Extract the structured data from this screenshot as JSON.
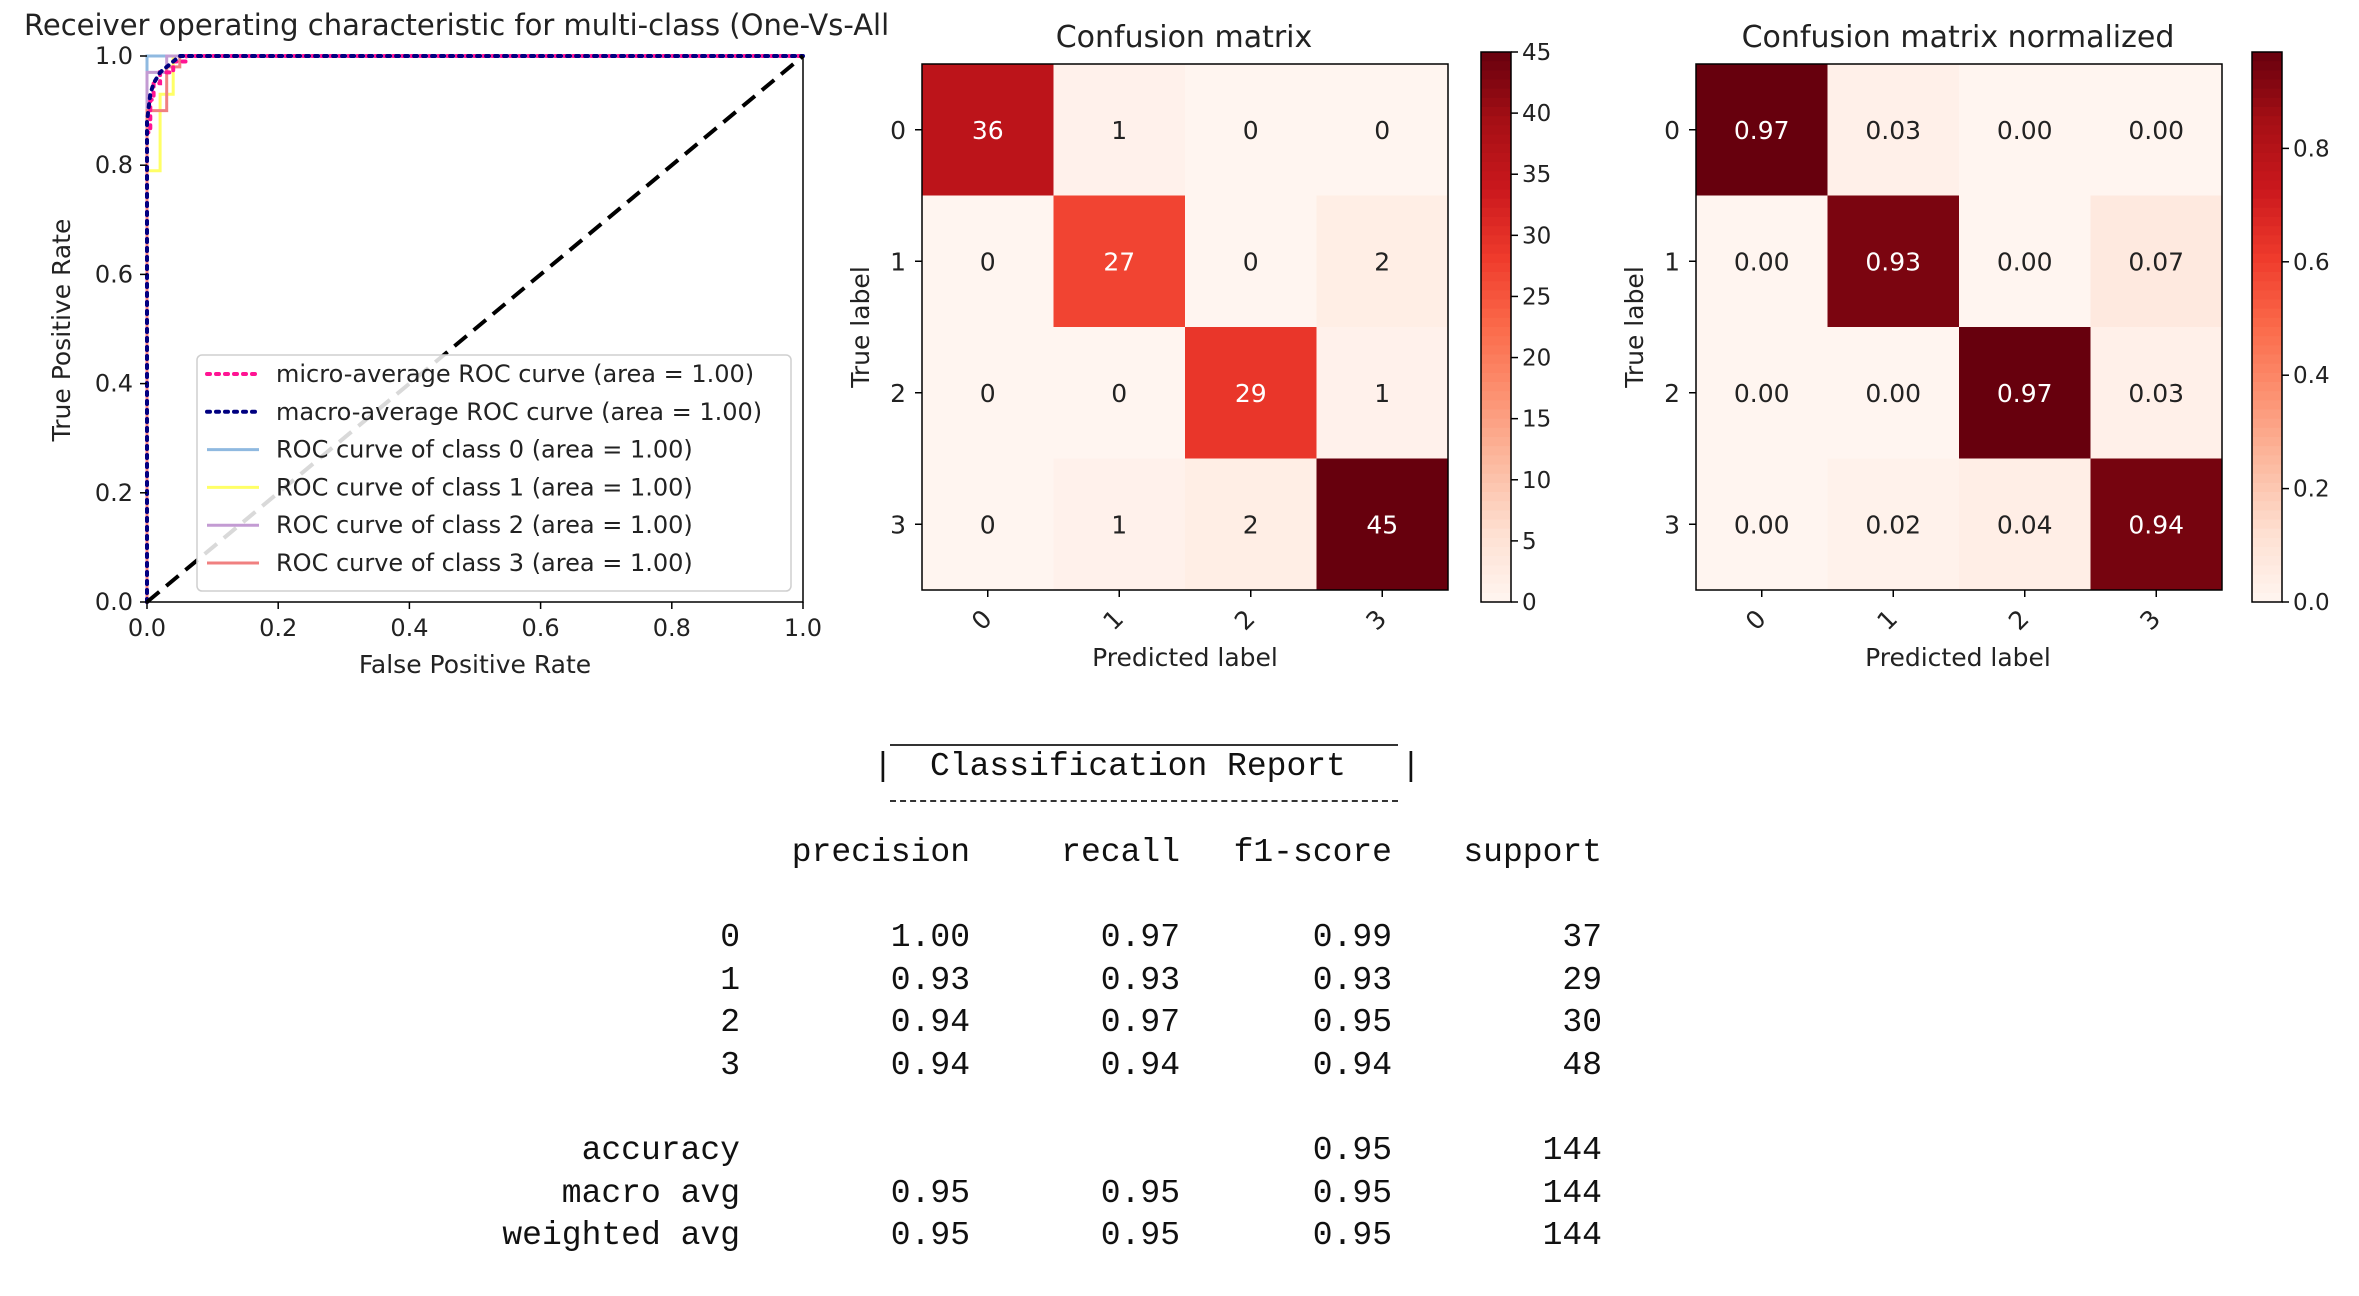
{
  "chart_data": [
    {
      "type": "line",
      "title": "Receiver operating characteristic for multi-class (One-Vs-All",
      "xlabel": "False Positive Rate",
      "ylabel": "True Positive Rate",
      "xlim": [
        0.0,
        1.0
      ],
      "ylim": [
        0.0,
        1.0
      ],
      "xticks": [
        "0.0",
        "0.2",
        "0.4",
        "0.6",
        "0.8",
        "1.0"
      ],
      "yticks": [
        "0.0",
        "0.2",
        "0.4",
        "0.6",
        "0.8",
        "1.0"
      ],
      "legend_position": "lower-right",
      "series": [
        {
          "name": "micro-average ROC curve (area = 1.00)",
          "color": "#ff1493",
          "style": "dotted",
          "x": [
            0.0,
            0.0,
            0.005,
            0.005,
            0.01,
            0.01,
            0.02,
            0.02,
            0.04,
            0.04,
            0.06,
            0.06,
            1.0
          ],
          "y": [
            0.0,
            0.86,
            0.86,
            0.92,
            0.92,
            0.95,
            0.95,
            0.97,
            0.97,
            0.99,
            0.99,
            1.0,
            1.0
          ]
        },
        {
          "name": "macro-average ROC curve (area = 1.00)",
          "color": "#000080",
          "style": "dotted",
          "x": [
            0.0,
            0.0,
            0.005,
            0.01,
            0.02,
            0.03,
            0.04,
            0.05,
            1.0
          ],
          "y": [
            0.0,
            0.88,
            0.93,
            0.95,
            0.97,
            0.98,
            0.99,
            1.0,
            1.0
          ]
        },
        {
          "name": "ROC curve of class 0 (area = 1.00)",
          "color": "#8fb9e0",
          "style": "solid",
          "x": [
            0.0,
            0.0,
            1.0
          ],
          "y": [
            0.0,
            1.0,
            1.0
          ]
        },
        {
          "name": "ROC curve of class 1 (area = 1.00)",
          "color": "#ffff66",
          "style": "solid",
          "x": [
            0.0,
            0.0,
            0.02,
            0.02,
            0.04,
            0.04,
            1.0
          ],
          "y": [
            0.0,
            0.79,
            0.79,
            0.93,
            0.93,
            1.0,
            1.0
          ]
        },
        {
          "name": "ROC curve of class 2 (area = 1.00)",
          "color": "#c39bd3",
          "style": "solid",
          "x": [
            0.0,
            0.0,
            0.03,
            0.03,
            1.0
          ],
          "y": [
            0.0,
            0.97,
            0.97,
            1.0,
            1.0
          ]
        },
        {
          "name": "ROC curve of class 3 (area = 1.00)",
          "color": "#f08080",
          "style": "solid",
          "x": [
            0.0,
            0.0,
            0.03,
            0.03,
            0.05,
            0.05,
            1.0
          ],
          "y": [
            0.0,
            0.9,
            0.9,
            0.98,
            0.98,
            1.0,
            1.0
          ]
        }
      ],
      "reference_line": {
        "x": [
          0.0,
          1.0
        ],
        "y": [
          0.0,
          1.0
        ],
        "style": "dashed",
        "color": "#000000"
      }
    },
    {
      "type": "heatmap",
      "title": "Confusion matrix",
      "xlabel": "Predicted label",
      "ylabel": "True label",
      "x_ticks": [
        "0",
        "1",
        "2",
        "3"
      ],
      "y_ticks": [
        "0",
        "1",
        "2",
        "3"
      ],
      "values": [
        [
          36,
          1,
          0,
          0
        ],
        [
          0,
          27,
          0,
          2
        ],
        [
          0,
          0,
          29,
          1
        ],
        [
          0,
          1,
          2,
          45
        ]
      ],
      "labels": [
        [
          "36",
          "1",
          "0",
          "0"
        ],
        [
          "0",
          "27",
          "0",
          "2"
        ],
        [
          "0",
          "0",
          "29",
          "1"
        ],
        [
          "0",
          "1",
          "2",
          "45"
        ]
      ],
      "colormap": "Reds",
      "vmin": 0,
      "vmax": 45,
      "colorbar_ticks": [
        "0",
        "5",
        "10",
        "15",
        "20",
        "25",
        "30",
        "35",
        "40",
        "45"
      ]
    },
    {
      "type": "heatmap",
      "title": "Confusion matrix normalized",
      "xlabel": "Predicted label",
      "ylabel": "True label",
      "x_ticks": [
        "0",
        "1",
        "2",
        "3"
      ],
      "y_ticks": [
        "0",
        "1",
        "2",
        "3"
      ],
      "values": [
        [
          0.97,
          0.03,
          0.0,
          0.0
        ],
        [
          0.0,
          0.93,
          0.0,
          0.07
        ],
        [
          0.0,
          0.0,
          0.97,
          0.03
        ],
        [
          0.0,
          0.02,
          0.04,
          0.94
        ]
      ],
      "labels": [
        [
          "0.97",
          "0.03",
          "0.00",
          "0.00"
        ],
        [
          "0.00",
          "0.93",
          "0.00",
          "0.07"
        ],
        [
          "0.00",
          "0.00",
          "0.97",
          "0.03"
        ],
        [
          "0.00",
          "0.02",
          "0.04",
          "0.94"
        ]
      ],
      "colormap": "Reds",
      "vmin": 0.0,
      "vmax": 0.97,
      "colorbar_ticks": [
        "0.0",
        "0.2",
        "0.4",
        "0.6",
        "0.8"
      ]
    },
    {
      "type": "table",
      "title": "Classification Report",
      "columns": [
        "precision",
        "recall",
        "f1-score",
        "support"
      ],
      "rows": [
        {
          "label": "0",
          "cells": [
            "1.00",
            "0.97",
            "0.99",
            "37"
          ]
        },
        {
          "label": "1",
          "cells": [
            "0.93",
            "0.93",
            "0.93",
            "29"
          ]
        },
        {
          "label": "2",
          "cells": [
            "0.94",
            "0.97",
            "0.95",
            "30"
          ]
        },
        {
          "label": "3",
          "cells": [
            "0.94",
            "0.94",
            "0.94",
            "48"
          ]
        }
      ],
      "summary_rows": [
        {
          "label": "accuracy",
          "cells": [
            "",
            "",
            "0.95",
            "144"
          ]
        },
        {
          "label": "macro avg",
          "cells": [
            "0.95",
            "0.95",
            "0.95",
            "144"
          ]
        },
        {
          "label": "weighted avg",
          "cells": [
            "0.95",
            "0.95",
            "0.95",
            "144"
          ]
        }
      ]
    }
  ]
}
